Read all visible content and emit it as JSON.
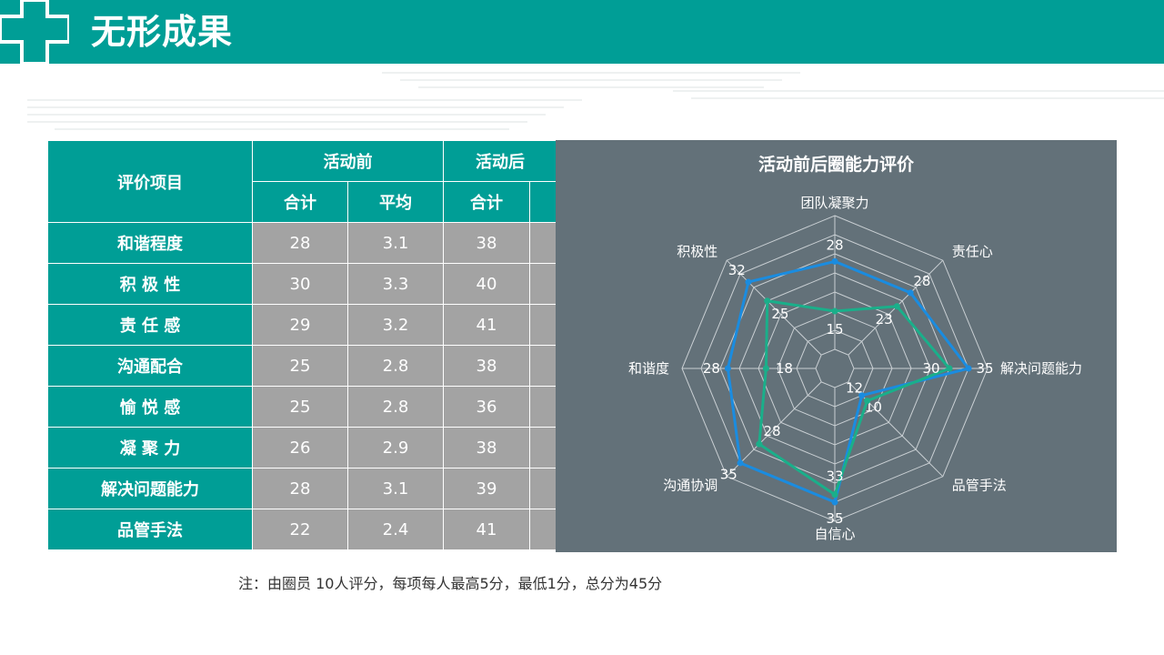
{
  "header": {
    "title": "无形成果"
  },
  "table": {
    "corner": "评价项目",
    "group_before": "活动前",
    "group_after": "活动后",
    "sub_sum": "合计",
    "sub_avg": "平均",
    "rows": [
      {
        "label": "和谐程度",
        "before_sum": "28",
        "before_avg": "3.1",
        "after_sum": "38"
      },
      {
        "label": "积 极 性",
        "before_sum": "30",
        "before_avg": "3.3",
        "after_sum": "40"
      },
      {
        "label": "责 任 感",
        "before_sum": "29",
        "before_avg": "3.2",
        "after_sum": "41"
      },
      {
        "label": "沟通配合",
        "before_sum": "25",
        "before_avg": "2.8",
        "after_sum": "38"
      },
      {
        "label": "愉 悦 感",
        "before_sum": "25",
        "before_avg": "2.8",
        "after_sum": "36"
      },
      {
        "label": "凝 聚 力",
        "before_sum": "26",
        "before_avg": "2.9",
        "after_sum": "38"
      },
      {
        "label": "解决问题能力",
        "before_sum": "28",
        "before_avg": "3.1",
        "after_sum": "39"
      },
      {
        "label": "品管手法",
        "before_sum": "22",
        "before_avg": "2.4",
        "after_sum": "41"
      }
    ]
  },
  "chart_data": {
    "type": "radar",
    "title": "活动前后圈能力评价",
    "categories": [
      "团队凝聚力",
      "责任心",
      "解决问题能力",
      "品管手法",
      "自信心",
      "沟通协调",
      "和谐度",
      "积极性"
    ],
    "series": [
      {
        "color": "#1a8ce0",
        "values": [
          28,
          28,
          35,
          10,
          35,
          35,
          28,
          32
        ]
      },
      {
        "color": "#1aaf8a",
        "values": [
          15,
          23,
          30,
          12,
          33,
          28,
          18,
          25
        ]
      }
    ],
    "rmax": 40,
    "grid_levels": 8,
    "grid": true
  },
  "note": "注：由圈员 10人评分，每项每人最高5分，最低1分，总分为45分"
}
